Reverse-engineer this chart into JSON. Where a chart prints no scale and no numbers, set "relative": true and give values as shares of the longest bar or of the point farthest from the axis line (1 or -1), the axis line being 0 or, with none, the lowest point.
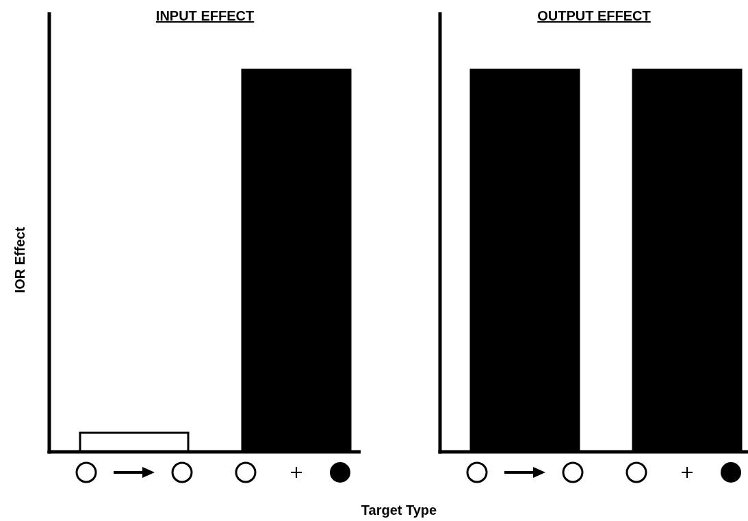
{
  "chart_data": [
    {
      "type": "bar",
      "title": "INPUT EFFECT",
      "ylabel": "IOR Effect",
      "xlabel": "Target Type",
      "relative": true,
      "categories": [
        null,
        null
      ],
      "values": [
        0.05,
        1
      ],
      "colors": [
        "#ffffff",
        "#000000"
      ]
    },
    {
      "type": "bar",
      "title": "OUTPUT EFFECT",
      "relative": true,
      "categories": [
        null,
        null
      ],
      "values": [
        1,
        1
      ],
      "colors": [
        "#000000",
        "#000000"
      ]
    }
  ]
}
